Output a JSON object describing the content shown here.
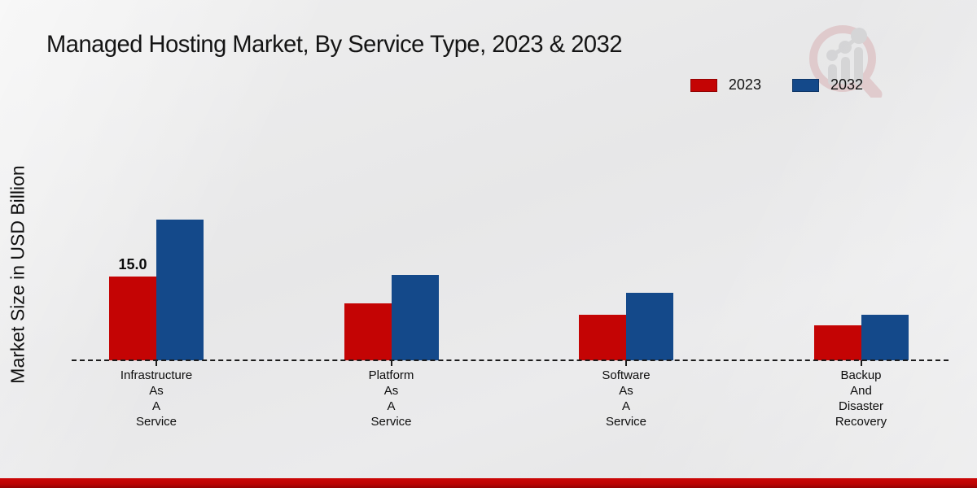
{
  "title": "Managed Hosting Market, By Service Type, 2023 & 2032",
  "y_axis_label": "Market Size in USD Billion",
  "legend": {
    "items": [
      {
        "label": "2023",
        "color": "#c40404"
      },
      {
        "label": "2032",
        "color": "#14498a"
      }
    ]
  },
  "watermark": {
    "name": "market-research-future-logo"
  },
  "footer": {
    "accent_color": "#bb0404"
  },
  "chart_data": {
    "type": "bar",
    "title": "Managed Hosting Market, By Service Type, 2023 & 2032",
    "xlabel": "",
    "ylabel": "Market Size in USD Billion",
    "categories": [
      "Infrastructure As A Service",
      "Platform As A Service",
      "Software As A Service",
      "Backup And Disaster Recovery"
    ],
    "categories_lines": [
      [
        "Infrastructure",
        "As",
        "A",
        "Service"
      ],
      [
        "Platform",
        "As",
        "A",
        "Service"
      ],
      [
        "Software",
        "As",
        "A",
        "Service"
      ],
      [
        "Backup",
        "And",
        "Disaster",
        "Recovery"
      ]
    ],
    "series": [
      {
        "name": "2023",
        "color": "#c40404",
        "values": [
          15.0,
          10.2,
          8.1,
          6.2
        ]
      },
      {
        "name": "2032",
        "color": "#14498a",
        "values": [
          25.2,
          15.2,
          12.0,
          8.2
        ]
      }
    ],
    "value_labels": [
      {
        "series": "2023",
        "category_index": 0,
        "text": "15.0"
      }
    ],
    "ylim": [
      0,
      27
    ],
    "grid": false,
    "legend_position": "top-right",
    "baseline_style": "dashed"
  }
}
